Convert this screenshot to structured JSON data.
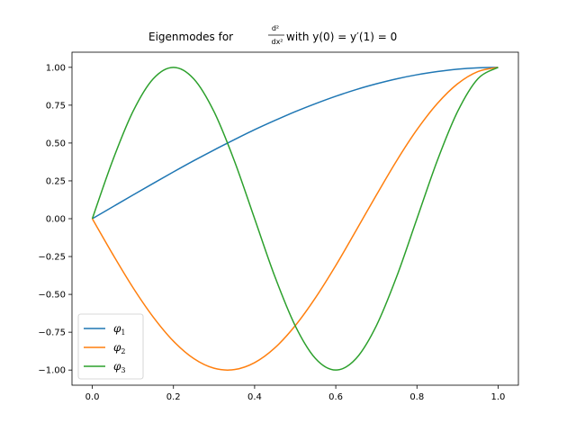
{
  "chart_data": {
    "type": "line",
    "title": {
      "prefix": "Eigenmodes for ",
      "frac_num": "d²",
      "frac_den": "dx²",
      "suffix": " with y(0) = y′(1) = 0"
    },
    "xlabel": "",
    "ylabel": "",
    "xlim": [
      -0.05,
      1.05
    ],
    "ylim": [
      -1.1,
      1.1
    ],
    "x_ticks": [
      0.0,
      0.2,
      0.4,
      0.6,
      0.8,
      1.0
    ],
    "x_tick_labels": [
      "0.0",
      "0.2",
      "0.4",
      "0.6",
      "0.8",
      "1.0"
    ],
    "y_ticks": [
      1.0,
      0.75,
      0.5,
      0.25,
      0.0,
      -0.25,
      -0.5,
      -0.75,
      -1.0
    ],
    "y_tick_labels": [
      "1.00",
      "0.75",
      "0.50",
      "0.25",
      "0.00",
      "−0.25",
      "−0.50",
      "−0.75",
      "−1.00"
    ],
    "grid": false,
    "legend_position": "lower-left",
    "x": [
      0.0,
      0.05,
      0.1,
      0.15,
      0.2,
      0.25,
      0.3,
      0.35,
      0.4,
      0.45,
      0.5,
      0.55,
      0.6,
      0.65,
      0.7,
      0.75,
      0.8,
      0.85,
      0.9,
      0.95,
      1.0
    ],
    "series": [
      {
        "name": "φ",
        "sub": "1",
        "color": "#1f77b4",
        "values": [
          0.0,
          0.078,
          0.156,
          0.233,
          0.309,
          0.383,
          0.454,
          0.522,
          0.588,
          0.649,
          0.707,
          0.76,
          0.809,
          0.853,
          0.891,
          0.924,
          0.951,
          0.972,
          0.988,
          0.997,
          1.0
        ]
      },
      {
        "name": "φ",
        "sub": "2",
        "color": "#ff7f0e",
        "values": [
          0.0,
          -0.233,
          -0.454,
          -0.649,
          -0.809,
          -0.924,
          -0.988,
          -0.997,
          -0.951,
          -0.853,
          -0.707,
          -0.522,
          -0.309,
          -0.078,
          0.156,
          0.383,
          0.588,
          0.76,
          0.891,
          0.972,
          1.0
        ]
      },
      {
        "name": "φ",
        "sub": "3",
        "color": "#2ca02c",
        "values": [
          0.0,
          0.383,
          0.707,
          0.924,
          1.0,
          0.924,
          0.707,
          0.383,
          0.0,
          -0.383,
          -0.707,
          -0.924,
          -1.0,
          -0.924,
          -0.707,
          -0.383,
          0.0,
          0.383,
          0.707,
          0.924,
          1.0
        ]
      }
    ]
  }
}
